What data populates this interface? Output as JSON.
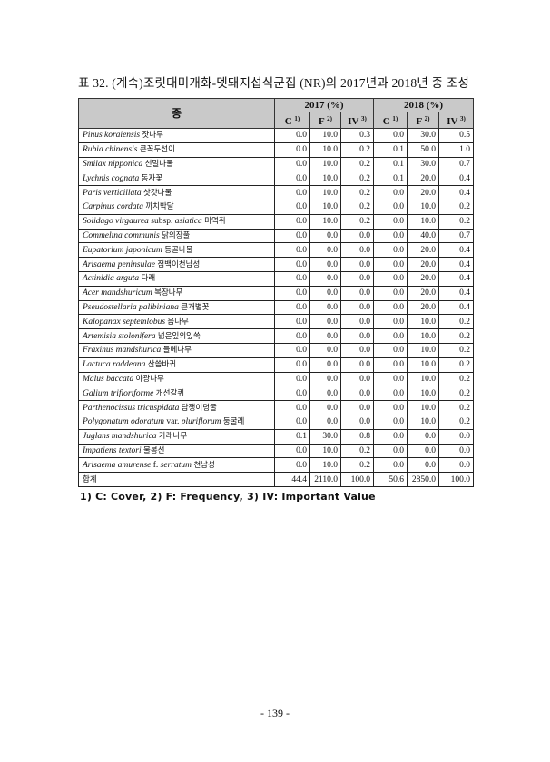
{
  "title": "표 32. (계속)조릿대미개화-멧돼지섭식군집 (NR)의 2017년과 2018년 종 조성",
  "table": {
    "species_header": "종",
    "years": [
      "2017 (%)",
      "2018 (%)"
    ],
    "sub_headers": [
      {
        "label": "C",
        "sup": "1)"
      },
      {
        "label": "F",
        "sup": "2)"
      },
      {
        "label": "IV",
        "sup": "3)"
      },
      {
        "label": "C",
        "sup": "1)"
      },
      {
        "label": "F",
        "sup": "2)"
      },
      {
        "label": "IV",
        "sup": "3)"
      }
    ],
    "rows": [
      {
        "name": [
          {
            "t": "Pinus koraiensis",
            "i": true
          },
          {
            "t": "잣나무",
            "k": true
          }
        ],
        "values": [
          "0.0",
          "10.0",
          "0.3",
          "0.0",
          "30.0",
          "0.5"
        ]
      },
      {
        "name": [
          {
            "t": "Rubia chinensis",
            "i": true
          },
          {
            "t": "큰꼭두선이",
            "k": true
          }
        ],
        "values": [
          "0.0",
          "10.0",
          "0.2",
          "0.1",
          "50.0",
          "1.0"
        ]
      },
      {
        "name": [
          {
            "t": "Smilax nipponica",
            "i": true
          },
          {
            "t": "선밀나물",
            "k": true
          }
        ],
        "values": [
          "0.0",
          "10.0",
          "0.2",
          "0.1",
          "30.0",
          "0.7"
        ]
      },
      {
        "name": [
          {
            "t": "Lychnis cognata",
            "i": true
          },
          {
            "t": "동자꽃",
            "k": true
          }
        ],
        "values": [
          "0.0",
          "10.0",
          "0.2",
          "0.1",
          "20.0",
          "0.4"
        ]
      },
      {
        "name": [
          {
            "t": "Paris verticillata",
            "i": true
          },
          {
            "t": "삿갓나물",
            "k": true
          }
        ],
        "values": [
          "0.0",
          "10.0",
          "0.2",
          "0.0",
          "20.0",
          "0.4"
        ]
      },
      {
        "name": [
          {
            "t": "Carpinus cordata",
            "i": true
          },
          {
            "t": "까치박달",
            "k": true
          }
        ],
        "values": [
          "0.0",
          "10.0",
          "0.2",
          "0.0",
          "10.0",
          "0.2"
        ]
      },
      {
        "name": [
          {
            "t": "Solidago virgaurea",
            "i": true
          },
          {
            "t": "subsp."
          },
          {
            "t": "asiatica",
            "i": true
          },
          {
            "t": "미역취",
            "k": true
          }
        ],
        "values": [
          "0.0",
          "10.0",
          "0.2",
          "0.0",
          "10.0",
          "0.2"
        ]
      },
      {
        "name": [
          {
            "t": "Commelina communis",
            "i": true
          },
          {
            "t": "닭의장풀",
            "k": true
          }
        ],
        "values": [
          "0.0",
          "0.0",
          "0.0",
          "0.0",
          "40.0",
          "0.7"
        ]
      },
      {
        "name": [
          {
            "t": "Eupatorium japonicum",
            "i": true
          },
          {
            "t": "등골나물",
            "k": true
          }
        ],
        "values": [
          "0.0",
          "0.0",
          "0.0",
          "0.0",
          "20.0",
          "0.4"
        ]
      },
      {
        "name": [
          {
            "t": "Arisaema peninsulae",
            "i": true
          },
          {
            "t": "점백이천남성",
            "k": true
          }
        ],
        "values": [
          "0.0",
          "0.0",
          "0.0",
          "0.0",
          "20.0",
          "0.4"
        ]
      },
      {
        "name": [
          {
            "t": "Actinidia arguta",
            "i": true
          },
          {
            "t": "다래",
            "k": true
          }
        ],
        "values": [
          "0.0",
          "0.0",
          "0.0",
          "0.0",
          "20.0",
          "0.4"
        ]
      },
      {
        "name": [
          {
            "t": "Acer mandshuricum",
            "i": true
          },
          {
            "t": "복장나무",
            "k": true
          }
        ],
        "values": [
          "0.0",
          "0.0",
          "0.0",
          "0.0",
          "20.0",
          "0.4"
        ]
      },
      {
        "name": [
          {
            "t": "Pseudostellaria palibiniana",
            "i": true
          },
          {
            "t": "큰개별꽃",
            "k": true
          }
        ],
        "values": [
          "0.0",
          "0.0",
          "0.0",
          "0.0",
          "20.0",
          "0.4"
        ]
      },
      {
        "name": [
          {
            "t": "Kalopanax septemlobus",
            "i": true
          },
          {
            "t": "음나무",
            "k": true
          }
        ],
        "values": [
          "0.0",
          "0.0",
          "0.0",
          "0.0",
          "10.0",
          "0.2"
        ]
      },
      {
        "name": [
          {
            "t": "Artemisia stolonifera",
            "i": true
          },
          {
            "t": "넓은잎외잎쑥",
            "k": true
          }
        ],
        "values": [
          "0.0",
          "0.0",
          "0.0",
          "0.0",
          "10.0",
          "0.2"
        ]
      },
      {
        "name": [
          {
            "t": "Fraxinus mandshurica",
            "i": true
          },
          {
            "t": "들메나무",
            "k": true
          }
        ],
        "values": [
          "0.0",
          "0.0",
          "0.0",
          "0.0",
          "10.0",
          "0.2"
        ]
      },
      {
        "name": [
          {
            "t": "Lactuca raddeana",
            "i": true
          },
          {
            "t": "산씀바귀",
            "k": true
          }
        ],
        "values": [
          "0.0",
          "0.0",
          "0.0",
          "0.0",
          "10.0",
          "0.2"
        ]
      },
      {
        "name": [
          {
            "t": "Malus baccata",
            "i": true
          },
          {
            "t": "야광나무",
            "k": true
          }
        ],
        "values": [
          "0.0",
          "0.0",
          "0.0",
          "0.0",
          "10.0",
          "0.2"
        ]
      },
      {
        "name": [
          {
            "t": "Galium trifloriforme",
            "i": true
          },
          {
            "t": "개선갈퀴",
            "k": true
          }
        ],
        "values": [
          "0.0",
          "0.0",
          "0.0",
          "0.0",
          "10.0",
          "0.2"
        ]
      },
      {
        "name": [
          {
            "t": "Parthenocissus tricuspidata",
            "i": true
          },
          {
            "t": "담쟁이덩굴",
            "k": true
          }
        ],
        "values": [
          "0.0",
          "0.0",
          "0.0",
          "0.0",
          "10.0",
          "0.2"
        ]
      },
      {
        "name": [
          {
            "t": "Polygonatum odoratum",
            "i": true
          },
          {
            "t": "var."
          },
          {
            "t": "pluriflorum",
            "i": true
          },
          {
            "t": "둥굴레",
            "k": true
          }
        ],
        "values": [
          "0.0",
          "0.0",
          "0.0",
          "0.0",
          "10.0",
          "0.2"
        ]
      },
      {
        "name": [
          {
            "t": "Juglans mandshurica",
            "i": true
          },
          {
            "t": "가래나무",
            "k": true
          }
        ],
        "values": [
          "0.1",
          "30.0",
          "0.8",
          "0.0",
          "0.0",
          "0.0"
        ]
      },
      {
        "name": [
          {
            "t": "Impatiens textori",
            "i": true
          },
          {
            "t": "물봉선",
            "k": true
          }
        ],
        "values": [
          "0.0",
          "10.0",
          "0.2",
          "0.0",
          "0.0",
          "0.0"
        ]
      },
      {
        "name": [
          {
            "t": "Arisaema amurense",
            "i": true
          },
          {
            "t": "f."
          },
          {
            "t": "serratum",
            "i": true
          },
          {
            "t": "천남성",
            "k": true
          }
        ],
        "values": [
          "0.0",
          "10.0",
          "0.2",
          "0.0",
          "0.0",
          "0.0"
        ]
      }
    ],
    "total": {
      "label": "합계",
      "values": [
        "44.4",
        "2110.0",
        "100.0",
        "50.6",
        "2850.0",
        "100.0"
      ]
    }
  },
  "footnote": "1) C: Cover, 2) F: Frequency, 3) IV: Important Value",
  "page_number": "- 139 -",
  "colors": {
    "header_bg": "#c9c9c9",
    "border": "#222222"
  }
}
